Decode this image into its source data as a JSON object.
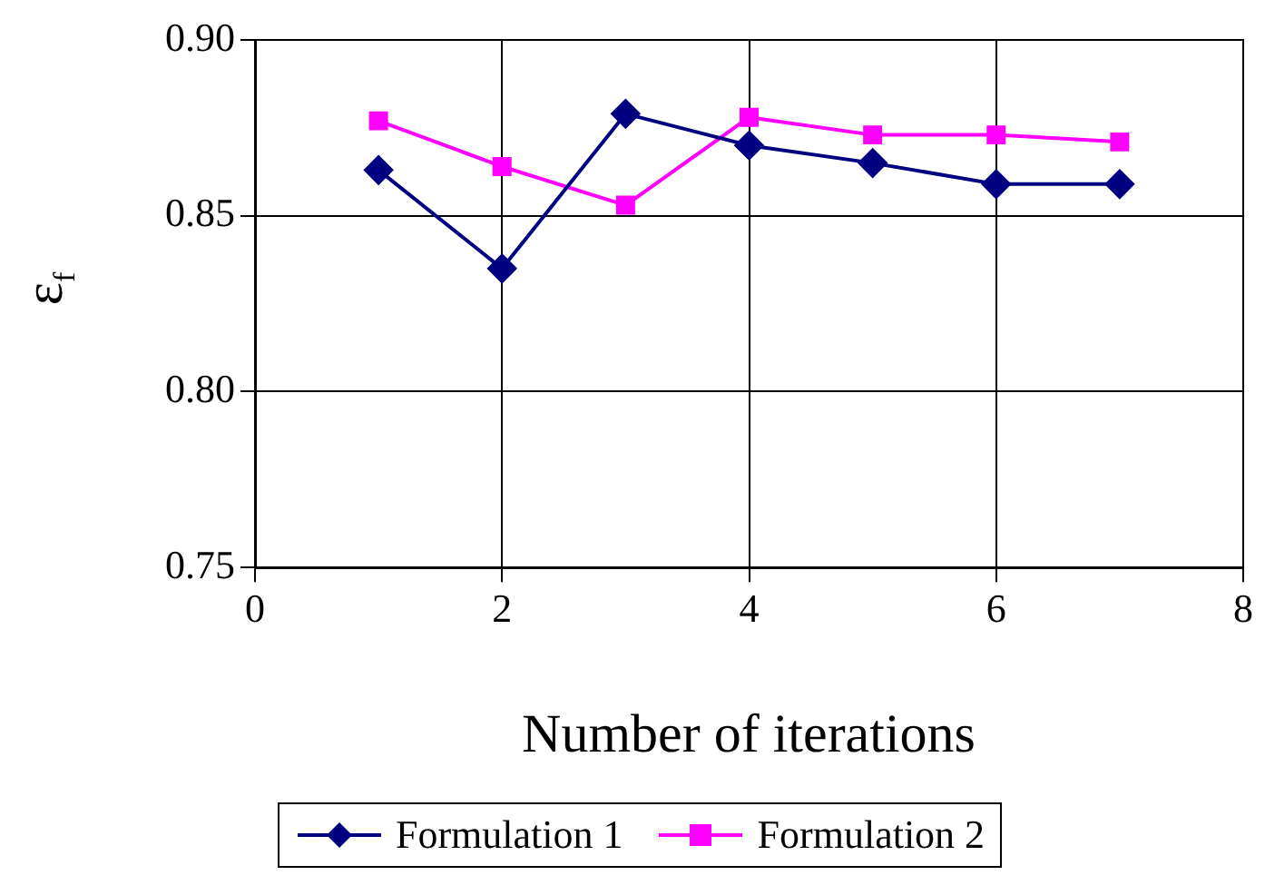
{
  "chart_data": {
    "type": "line",
    "xlabel": "Number of iterations",
    "ylabel": "ε$_{f}$",
    "x": [
      1,
      2,
      3,
      4,
      5,
      6,
      7
    ],
    "series": [
      {
        "name": "Formulation 1",
        "color": "#000080",
        "marker": "diamond",
        "values": [
          0.863,
          0.835,
          0.879,
          0.87,
          0.865,
          0.859,
          0.859
        ]
      },
      {
        "name": "Formulation 2",
        "color": "#ff00ff",
        "marker": "square",
        "values": [
          0.877,
          0.864,
          0.853,
          0.878,
          0.873,
          0.873,
          0.871
        ]
      }
    ],
    "xlim": [
      0,
      8
    ],
    "xticks": [
      0,
      2,
      4,
      6,
      8
    ],
    "ylim": [
      0.75,
      0.9
    ],
    "yticks": [
      {
        "value": 0.75,
        "label": "0.75"
      },
      {
        "value": 0.8,
        "label": "0.80"
      },
      {
        "value": 0.85,
        "label": "0.85"
      },
      {
        "value": 0.9,
        "label": "0.90"
      }
    ],
    "grid": true,
    "legend": "bottom",
    "line_style": "solid"
  }
}
